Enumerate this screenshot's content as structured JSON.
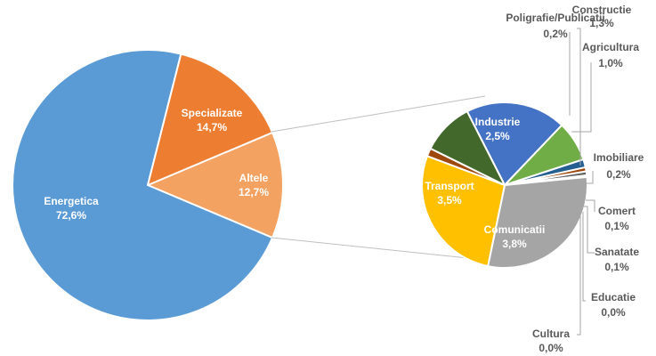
{
  "chart_data": [
    {
      "type": "pie",
      "subtype": "pie-of-pie",
      "main_pie": {
        "slices": [
          {
            "label": "Energetica",
            "value_text": "72,6%",
            "value": 72.6,
            "color": "#5b9bd5"
          },
          {
            "label": "Specializate",
            "value_text": "14,7%",
            "value": 14.7,
            "color": "#ed7d31"
          },
          {
            "label": "Altele",
            "value_text": "12,7%",
            "value": 12.7,
            "color": "#f4a261"
          }
        ]
      },
      "secondary_pie": {
        "parent": "Altele",
        "slices": [
          {
            "label": "Industrie",
            "value_text": "2,5%",
            "value": 2.5,
            "color": "#4472c4"
          },
          {
            "label": "Agricultura",
            "value_text": "1,0%",
            "value": 1.0,
            "color": "#70ad47"
          },
          {
            "label": "Imobiliare",
            "value_text": "0,2%",
            "value": 0.2,
            "color": "#255e91"
          },
          {
            "label": "Comert",
            "value_text": "0,1%",
            "value": 0.1,
            "color": "#9e480e"
          },
          {
            "label": "Sanatate",
            "value_text": "0,1%",
            "value": 0.1,
            "color": "#636363"
          },
          {
            "label": "Educatie",
            "value_text": "0,0%",
            "value": 0.02,
            "color": "#997300"
          },
          {
            "label": "Cultura",
            "value_text": "0,0%",
            "value": 0.02,
            "color": "#264478"
          },
          {
            "label": "Comunicatii",
            "value_text": "3,8%",
            "value": 3.8,
            "color": "#a5a5a5"
          },
          {
            "label": "Transport",
            "value_text": "3,5%",
            "value": 3.5,
            "color": "#ffc000"
          },
          {
            "label": "Poligrafie/Publicatii",
            "value_text": "0,2%",
            "value": 0.2,
            "color": "#9e480e"
          },
          {
            "label": "Constructie",
            "value_text": "1,3%",
            "value": 1.3,
            "color": "#43682b"
          }
        ]
      }
    }
  ]
}
